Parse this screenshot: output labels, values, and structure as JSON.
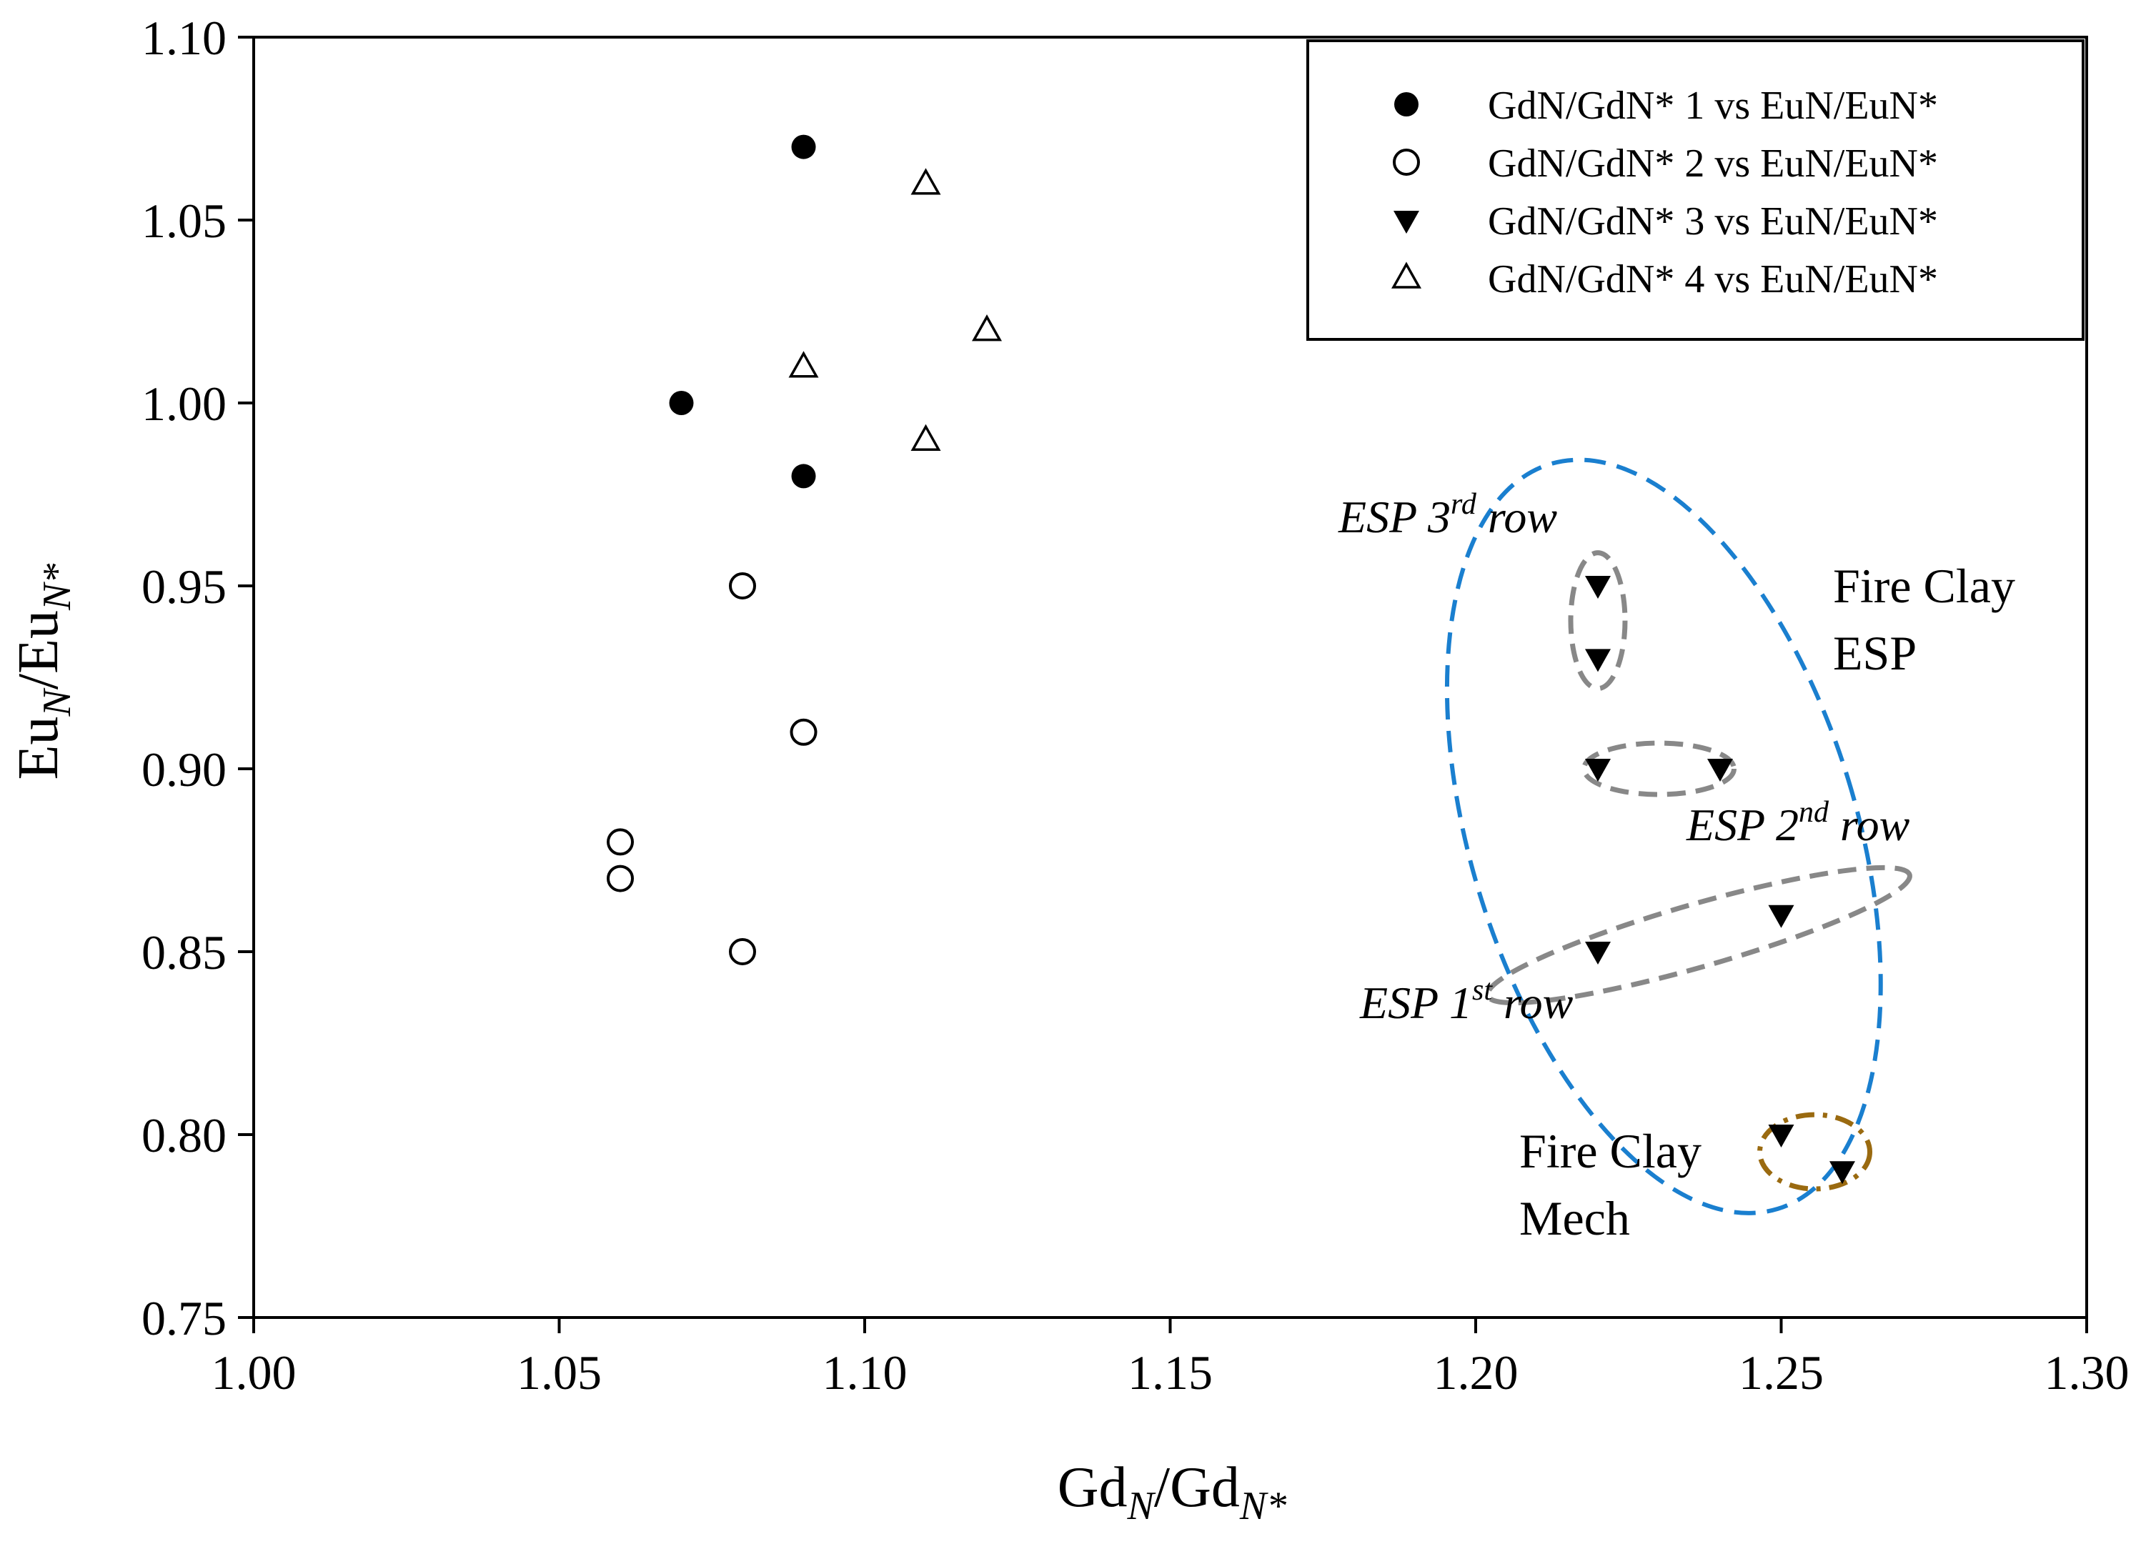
{
  "chart_data": {
    "type": "scatter",
    "xlabel": {
      "base": "Gd",
      "sub": "N",
      "sep": "/",
      "base2": "Gd",
      "sub2": "N*"
    },
    "ylabel": {
      "base": "Eu",
      "sub": "N",
      "sep": "/",
      "base2": "Eu",
      "sub2": "N*"
    },
    "xlim": [
      1.0,
      1.3
    ],
    "ylim": [
      0.75,
      1.1
    ],
    "xticks": [
      1.0,
      1.05,
      1.1,
      1.15,
      1.2,
      1.25,
      1.3
    ],
    "yticks": [
      0.75,
      0.8,
      0.85,
      0.9,
      0.95,
      1.0,
      1.05,
      1.1
    ],
    "xtick_labels": [
      "1.00",
      "1.05",
      "1.10",
      "1.15",
      "1.20",
      "1.25",
      "1.30"
    ],
    "ytick_labels": [
      "0.75",
      "0.80",
      "0.85",
      "0.90",
      "0.95",
      "1.00",
      "1.05",
      "1.10"
    ],
    "legend_position": "top-right",
    "series": [
      {
        "name": "GdN/GdN* 1 vs EuN/EuN*",
        "marker": "filled-circle",
        "points": [
          [
            1.09,
            1.07
          ],
          [
            1.07,
            1.0
          ],
          [
            1.09,
            0.98
          ]
        ]
      },
      {
        "name": "GdN/GdN* 2 vs EuN/EuN*",
        "marker": "open-circle",
        "points": [
          [
            1.08,
            0.95
          ],
          [
            1.09,
            0.91
          ],
          [
            1.06,
            0.88
          ],
          [
            1.06,
            0.87
          ],
          [
            1.08,
            0.85
          ]
        ]
      },
      {
        "name": "GdN/GdN* 3 vs EuN/EuN*",
        "marker": "filled-triangle-down",
        "points": [
          [
            1.22,
            0.95
          ],
          [
            1.22,
            0.93
          ],
          [
            1.22,
            0.9
          ],
          [
            1.24,
            0.9
          ],
          [
            1.25,
            0.86
          ],
          [
            1.22,
            0.85
          ],
          [
            1.25,
            0.8
          ],
          [
            1.26,
            0.79
          ]
        ]
      },
      {
        "name": "GdN/GdN* 4 vs EuN/EuN*",
        "marker": "open-triangle-up",
        "points": [
          [
            1.11,
            1.06
          ],
          [
            1.12,
            1.02
          ],
          [
            1.09,
            1.01
          ],
          [
            1.11,
            0.99
          ]
        ]
      }
    ],
    "annotations": [
      {
        "id": "esp3",
        "base": "ESP 3",
        "sup": "rd",
        "rest": " row",
        "italic": true
      },
      {
        "id": "esp2",
        "base": "ESP  2",
        "sup": "nd",
        "rest": " row",
        "italic": true
      },
      {
        "id": "esp1",
        "base": "ESP 1",
        "sup": "st",
        "rest": " row",
        "italic": true
      },
      {
        "id": "fireclay-esp",
        "lines": [
          "Fire Clay",
          "ESP"
        ],
        "italic": false
      },
      {
        "id": "fireclay-mech",
        "lines": [
          "Fire Clay",
          "Mech"
        ],
        "italic": false
      }
    ],
    "groupings": [
      {
        "id": "esp-group",
        "style": "dashed",
        "color": "#1a7fcf"
      },
      {
        "id": "esp3-group",
        "style": "dashed",
        "color": "#888888"
      },
      {
        "id": "esp2-group",
        "style": "dashed",
        "color": "#888888"
      },
      {
        "id": "esp1-group",
        "style": "dashed",
        "color": "#888888"
      },
      {
        "id": "mech-group",
        "style": "dash-dot",
        "color": "#9a6a10"
      }
    ]
  }
}
